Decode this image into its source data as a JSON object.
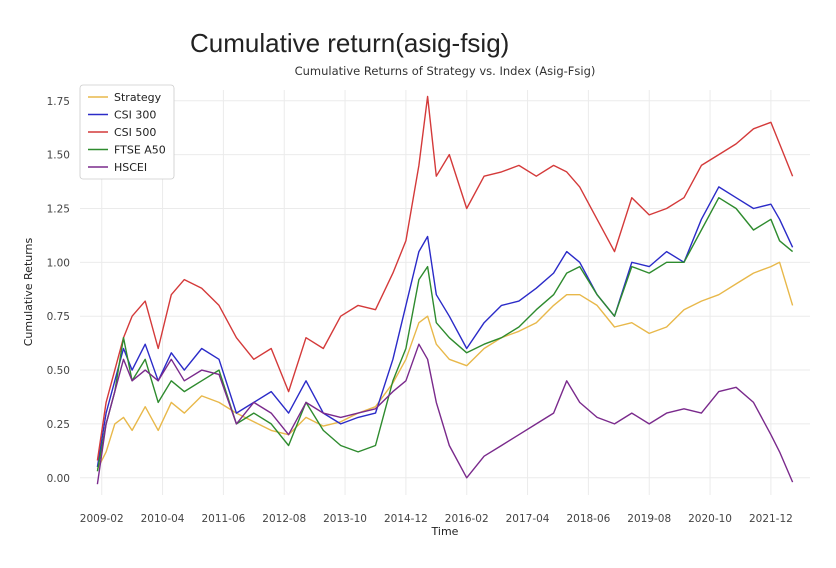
{
  "slide_title": "Cumulative return(asig-fsig)",
  "chart_data": {
    "type": "line",
    "title": "Cumulative Returns of Strategy vs. Index (Asig-Fsig)",
    "xlabel": "Time",
    "ylabel": "Cumulative Returns",
    "xlim": [
      "2008-09",
      "2022-09"
    ],
    "ylim": [
      -0.08,
      1.8
    ],
    "yticks": [
      0.0,
      0.25,
      0.5,
      0.75,
      1.0,
      1.25,
      1.5,
      1.75
    ],
    "ytick_labels": [
      "0.00",
      "0.25",
      "0.50",
      "0.75",
      "1.00",
      "1.25",
      "1.50",
      "1.75"
    ],
    "xticks": [
      "2009-02",
      "2010-04",
      "2011-06",
      "2012-08",
      "2013-10",
      "2014-12",
      "2016-02",
      "2017-04",
      "2018-06",
      "2019-08",
      "2020-10",
      "2021-12"
    ],
    "grid": true,
    "legend_position": "top-left",
    "series": [
      {
        "name": "Strategy",
        "color": "#e8b84a",
        "x": [
          "2009-01",
          "2009-03",
          "2009-05",
          "2009-07",
          "2009-09",
          "2009-12",
          "2010-03",
          "2010-06",
          "2010-09",
          "2011-01",
          "2011-05",
          "2011-09",
          "2012-01",
          "2012-05",
          "2012-09",
          "2013-01",
          "2013-05",
          "2013-09",
          "2014-01",
          "2014-05",
          "2014-09",
          "2014-12",
          "2015-03",
          "2015-05",
          "2015-07",
          "2015-10",
          "2016-02",
          "2016-06",
          "2016-10",
          "2017-02",
          "2017-06",
          "2017-10",
          "2018-01",
          "2018-04",
          "2018-08",
          "2018-12",
          "2019-04",
          "2019-08",
          "2019-12",
          "2020-04",
          "2020-08",
          "2020-12",
          "2021-04",
          "2021-08",
          "2021-12",
          "2022-02",
          "2022-05"
        ],
        "values": [
          0.04,
          0.12,
          0.25,
          0.28,
          0.22,
          0.33,
          0.22,
          0.35,
          0.3,
          0.38,
          0.35,
          0.3,
          0.26,
          0.22,
          0.2,
          0.28,
          0.24,
          0.26,
          0.3,
          0.33,
          0.44,
          0.55,
          0.72,
          0.75,
          0.62,
          0.55,
          0.52,
          0.6,
          0.65,
          0.68,
          0.72,
          0.8,
          0.85,
          0.85,
          0.8,
          0.7,
          0.72,
          0.67,
          0.7,
          0.78,
          0.82,
          0.85,
          0.9,
          0.95,
          0.98,
          1.0,
          0.8
        ]
      },
      {
        "name": "CSI 300",
        "color": "#2b2bc8",
        "x": [
          "2009-01",
          "2009-03",
          "2009-05",
          "2009-07",
          "2009-09",
          "2009-12",
          "2010-03",
          "2010-06",
          "2010-09",
          "2011-01",
          "2011-05",
          "2011-09",
          "2012-01",
          "2012-05",
          "2012-09",
          "2013-01",
          "2013-05",
          "2013-09",
          "2014-01",
          "2014-05",
          "2014-09",
          "2014-12",
          "2015-03",
          "2015-05",
          "2015-07",
          "2015-10",
          "2016-02",
          "2016-06",
          "2016-10",
          "2017-02",
          "2017-06",
          "2017-10",
          "2018-01",
          "2018-04",
          "2018-08",
          "2018-12",
          "2019-04",
          "2019-08",
          "2019-12",
          "2020-04",
          "2020-08",
          "2020-12",
          "2021-04",
          "2021-08",
          "2021-12",
          "2022-02",
          "2022-05"
        ],
        "values": [
          0.05,
          0.3,
          0.45,
          0.6,
          0.5,
          0.62,
          0.45,
          0.58,
          0.5,
          0.6,
          0.55,
          0.3,
          0.35,
          0.4,
          0.3,
          0.45,
          0.3,
          0.25,
          0.28,
          0.3,
          0.55,
          0.8,
          1.05,
          1.12,
          0.85,
          0.75,
          0.6,
          0.72,
          0.8,
          0.82,
          0.88,
          0.95,
          1.05,
          1.0,
          0.85,
          0.75,
          1.0,
          0.98,
          1.05,
          1.0,
          1.2,
          1.35,
          1.3,
          1.25,
          1.27,
          1.2,
          1.07
        ]
      },
      {
        "name": "CSI 500",
        "color": "#d43a3a",
        "x": [
          "2009-01",
          "2009-03",
          "2009-05",
          "2009-07",
          "2009-09",
          "2009-12",
          "2010-03",
          "2010-06",
          "2010-09",
          "2011-01",
          "2011-05",
          "2011-09",
          "2012-01",
          "2012-05",
          "2012-09",
          "2013-01",
          "2013-05",
          "2013-09",
          "2014-01",
          "2014-05",
          "2014-09",
          "2014-12",
          "2015-03",
          "2015-05",
          "2015-07",
          "2015-10",
          "2016-02",
          "2016-06",
          "2016-10",
          "2017-02",
          "2017-06",
          "2017-10",
          "2018-01",
          "2018-04",
          "2018-08",
          "2018-12",
          "2019-04",
          "2019-08",
          "2019-12",
          "2020-04",
          "2020-08",
          "2020-12",
          "2021-04",
          "2021-08",
          "2021-12",
          "2022-02",
          "2022-05"
        ],
        "values": [
          0.08,
          0.35,
          0.5,
          0.65,
          0.75,
          0.82,
          0.6,
          0.85,
          0.92,
          0.88,
          0.8,
          0.65,
          0.55,
          0.6,
          0.4,
          0.65,
          0.6,
          0.75,
          0.8,
          0.78,
          0.95,
          1.1,
          1.45,
          1.77,
          1.4,
          1.5,
          1.25,
          1.4,
          1.42,
          1.45,
          1.4,
          1.45,
          1.42,
          1.35,
          1.2,
          1.05,
          1.3,
          1.22,
          1.25,
          1.3,
          1.45,
          1.5,
          1.55,
          1.62,
          1.65,
          1.55,
          1.4
        ]
      },
      {
        "name": "FTSE A50",
        "color": "#2e8b2e",
        "x": [
          "2009-01",
          "2009-03",
          "2009-05",
          "2009-07",
          "2009-09",
          "2009-12",
          "2010-03",
          "2010-06",
          "2010-09",
          "2011-01",
          "2011-05",
          "2011-09",
          "2012-01",
          "2012-05",
          "2012-09",
          "2013-01",
          "2013-05",
          "2013-09",
          "2014-01",
          "2014-05",
          "2014-09",
          "2014-12",
          "2015-03",
          "2015-05",
          "2015-07",
          "2015-10",
          "2016-02",
          "2016-06",
          "2016-10",
          "2017-02",
          "2017-06",
          "2017-10",
          "2018-01",
          "2018-04",
          "2018-08",
          "2018-12",
          "2019-04",
          "2019-08",
          "2019-12",
          "2020-04",
          "2020-08",
          "2020-12",
          "2021-04",
          "2021-08",
          "2021-12",
          "2022-02",
          "2022-05"
        ],
        "values": [
          0.03,
          0.25,
          0.4,
          0.65,
          0.45,
          0.55,
          0.35,
          0.45,
          0.4,
          0.45,
          0.5,
          0.25,
          0.3,
          0.25,
          0.15,
          0.35,
          0.22,
          0.15,
          0.12,
          0.15,
          0.45,
          0.6,
          0.92,
          0.98,
          0.72,
          0.65,
          0.58,
          0.62,
          0.65,
          0.7,
          0.78,
          0.85,
          0.95,
          0.98,
          0.85,
          0.75,
          0.98,
          0.95,
          1.0,
          1.0,
          1.15,
          1.3,
          1.25,
          1.15,
          1.2,
          1.1,
          1.05
        ]
      },
      {
        "name": "HSCEI",
        "color": "#7a2a8c",
        "x": [
          "2009-01",
          "2009-03",
          "2009-05",
          "2009-07",
          "2009-09",
          "2009-12",
          "2010-03",
          "2010-06",
          "2010-09",
          "2011-01",
          "2011-05",
          "2011-09",
          "2012-01",
          "2012-05",
          "2012-09",
          "2013-01",
          "2013-05",
          "2013-09",
          "2014-01",
          "2014-05",
          "2014-09",
          "2014-12",
          "2015-03",
          "2015-05",
          "2015-07",
          "2015-10",
          "2016-02",
          "2016-06",
          "2016-10",
          "2017-02",
          "2017-06",
          "2017-10",
          "2018-01",
          "2018-04",
          "2018-08",
          "2018-12",
          "2019-04",
          "2019-08",
          "2019-12",
          "2020-04",
          "2020-08",
          "2020-12",
          "2021-04",
          "2021-08",
          "2021-12",
          "2022-02",
          "2022-05"
        ],
        "values": [
          -0.03,
          0.25,
          0.4,
          0.55,
          0.45,
          0.5,
          0.45,
          0.55,
          0.45,
          0.5,
          0.48,
          0.25,
          0.35,
          0.3,
          0.2,
          0.35,
          0.3,
          0.28,
          0.3,
          0.32,
          0.4,
          0.45,
          0.62,
          0.55,
          0.35,
          0.15,
          0.0,
          0.1,
          0.15,
          0.2,
          0.25,
          0.3,
          0.45,
          0.35,
          0.28,
          0.25,
          0.3,
          0.25,
          0.3,
          0.32,
          0.3,
          0.4,
          0.42,
          0.35,
          0.2,
          0.12,
          -0.02
        ]
      }
    ]
  }
}
